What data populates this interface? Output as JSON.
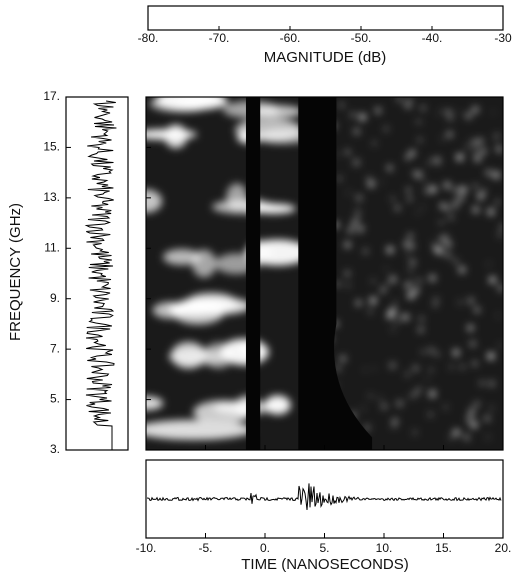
{
  "chart_data": {
    "type": "spectrogram",
    "colorbar": {
      "lim": [
        -80,
        -30
      ],
      "ticks": [
        {
          "value": -80,
          "label": "-80."
        },
        {
          "value": -70,
          "label": "-70."
        },
        {
          "value": -60,
          "label": "-60."
        },
        {
          "value": -50,
          "label": "-50."
        },
        {
          "value": -40,
          "label": "-40."
        },
        -30
      ],
      "label": "MAGNITUDE  (dB)",
      "colors": [
        "#ffffff",
        "#000000"
      ]
    },
    "ylabel": "FREQUENCY  (GHz)",
    "ylim": [
      3,
      17
    ],
    "yticks": [
      {
        "value": 3,
        "label": "3."
      },
      {
        "value": 5,
        "label": "5."
      },
      {
        "value": 7,
        "label": "7."
      },
      {
        "value": 9,
        "label": "9."
      },
      {
        "value": 11,
        "label": "11."
      },
      {
        "value": 13,
        "label": "13."
      },
      {
        "value": 15,
        "label": "15."
      },
      {
        "value": 17,
        "label": "17."
      }
    ],
    "xlabel": "TIME  (NANOSECONDS)",
    "xlim": [
      -10,
      20
    ],
    "xticks": [
      {
        "value": -10,
        "label": "-10."
      },
      {
        "value": -5,
        "label": "-5."
      },
      {
        "value": 0,
        "label": "0."
      },
      {
        "value": 5,
        "label": "5."
      },
      {
        "value": 10,
        "label": "10."
      },
      {
        "value": 15,
        "label": "15."
      },
      {
        "value": 20,
        "label": "20."
      }
    ]
  }
}
